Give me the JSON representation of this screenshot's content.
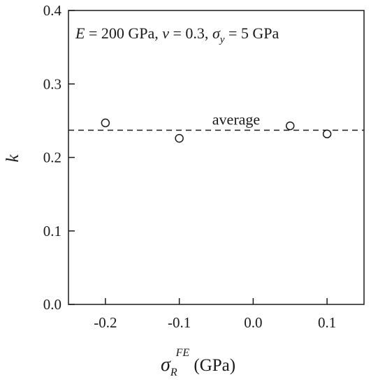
{
  "chart_data": {
    "type": "scatter",
    "annotation": {
      "E_sym": "E",
      "E_val": " = 200 GPa, ",
      "nu_sym": "ν",
      "nu_val": " = 0.3, ",
      "sigma_sym": "σ",
      "sigma_sub": "y",
      "sigma_val": " = 5 GPa"
    },
    "xlabel": {
      "sym": "σ",
      "sub": "R",
      "sup": "FE",
      "unit": " (GPa)"
    },
    "ylabel": "k",
    "xlim": [
      -0.25,
      0.15
    ],
    "ylim": [
      0.0,
      0.4
    ],
    "xticks": [
      -0.2,
      -0.1,
      0.0,
      0.1
    ],
    "xtick_labels": [
      "-0.2",
      "-0.1",
      "0.0",
      "0.1"
    ],
    "yticks": [
      0.0,
      0.1,
      0.2,
      0.3,
      0.4
    ],
    "ytick_labels": [
      "0.0",
      "0.1",
      "0.2",
      "0.3",
      "0.4"
    ],
    "points": [
      {
        "x": -0.2,
        "y": 0.247
      },
      {
        "x": -0.1,
        "y": 0.226
      },
      {
        "x": 0.05,
        "y": 0.243
      },
      {
        "x": 0.1,
        "y": 0.232
      }
    ],
    "average": {
      "label": "average",
      "y": 0.237
    },
    "grid": false,
    "marker": "open-circle",
    "colors": {
      "ink": "#1a1a1a",
      "background": "#ffffff"
    }
  }
}
